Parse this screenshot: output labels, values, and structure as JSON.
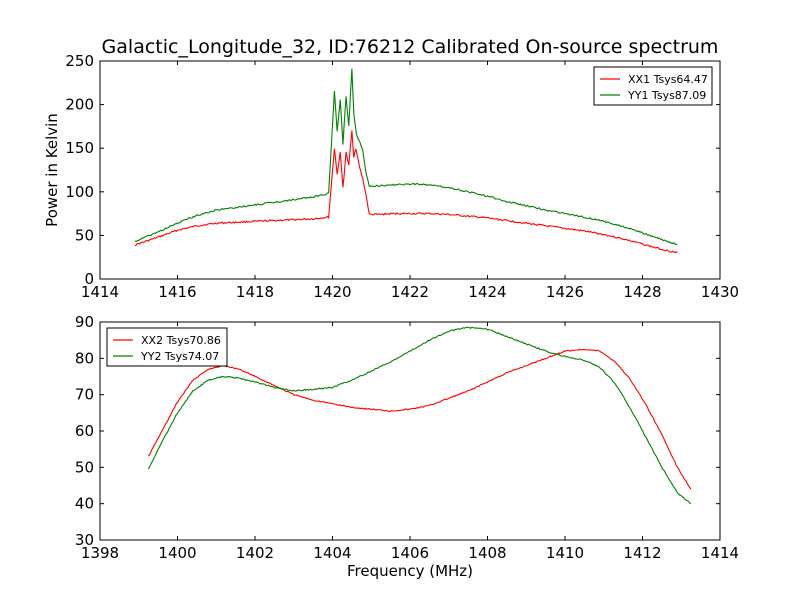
{
  "figure": {
    "title": "Galactic_Longitude_32, ID:76212 Calibrated On-source spectrum"
  },
  "chart_data": [
    {
      "type": "line",
      "title": "Galactic_Longitude_32, ID:76212 Calibrated On-source spectrum",
      "xlabel": "",
      "ylabel": "Power in Kelvin",
      "xlim": [
        1414,
        1430
      ],
      "ylim": [
        0,
        250
      ],
      "xticks": [
        "1414",
        "1416",
        "1418",
        "1420",
        "1422",
        "1424",
        "1426",
        "1428",
        "1430"
      ],
      "yticks": [
        "0",
        "50",
        "100",
        "150",
        "200",
        "250"
      ],
      "grid": false,
      "legend_position": "top-right",
      "series": [
        {
          "name": "XX1 Tsys64.47",
          "color": "#ff0000",
          "x": [
            1414.9,
            1415.5,
            1416.0,
            1416.5,
            1417.0,
            1417.5,
            1418.0,
            1418.5,
            1419.0,
            1419.5,
            1419.9,
            1420.05,
            1420.12,
            1420.2,
            1420.27,
            1420.35,
            1420.42,
            1420.5,
            1420.55,
            1420.6,
            1420.7,
            1420.78,
            1420.85,
            1420.95,
            1421.2,
            1421.6,
            1422.0,
            1422.5,
            1423.0,
            1423.5,
            1424.0,
            1424.5,
            1425.0,
            1425.5,
            1426.0,
            1426.5,
            1427.0,
            1427.5,
            1428.0,
            1428.5,
            1428.9
          ],
          "values": [
            39,
            48,
            56,
            61,
            64,
            65,
            66,
            67,
            68,
            69,
            71,
            150,
            120,
            145,
            105,
            145,
            130,
            170,
            140,
            150,
            128,
            115,
            100,
            74,
            74,
            75,
            75,
            75,
            74,
            72,
            70,
            67,
            64,
            61,
            58,
            55,
            51,
            46,
            40,
            34,
            30
          ]
        },
        {
          "name": "YY1 Tsys87.09",
          "color": "#008000",
          "x": [
            1414.9,
            1415.5,
            1416.0,
            1416.5,
            1417.0,
            1417.5,
            1418.0,
            1418.5,
            1419.0,
            1419.5,
            1419.9,
            1420.05,
            1420.12,
            1420.2,
            1420.27,
            1420.35,
            1420.42,
            1420.5,
            1420.55,
            1420.62,
            1420.7,
            1420.78,
            1420.85,
            1420.95,
            1421.2,
            1421.6,
            1422.0,
            1422.5,
            1423.0,
            1423.5,
            1424.0,
            1424.5,
            1425.0,
            1425.5,
            1426.0,
            1426.5,
            1427.0,
            1427.5,
            1428.0,
            1428.5,
            1428.9
          ],
          "values": [
            43,
            54,
            64,
            73,
            79,
            82,
            85,
            88,
            91,
            94,
            98,
            215,
            170,
            205,
            155,
            210,
            175,
            242,
            190,
            165,
            158,
            148,
            125,
            106,
            107,
            108,
            109,
            108,
            105,
            100,
            95,
            89,
            84,
            79,
            75,
            71,
            66,
            60,
            53,
            45,
            40
          ]
        }
      ]
    },
    {
      "type": "line",
      "title": "",
      "xlabel": "Frequency (MHz)",
      "ylabel": "",
      "xlim": [
        1398,
        1414
      ],
      "ylim": [
        30,
        90
      ],
      "xticks": [
        "1398",
        "1400",
        "1402",
        "1404",
        "1406",
        "1408",
        "1410",
        "1412",
        "1414"
      ],
      "yticks": [
        "30",
        "40",
        "50",
        "60",
        "70",
        "80",
        "90"
      ],
      "grid": false,
      "legend_position": "top-left",
      "series": [
        {
          "name": "XX2 Tsys70.86",
          "color": "#ff0000",
          "x": [
            1399.25,
            1399.6,
            1400.0,
            1400.4,
            1400.8,
            1401.2,
            1401.6,
            1402.0,
            1402.5,
            1403.0,
            1403.5,
            1404.0,
            1404.5,
            1405.0,
            1405.5,
            1406.0,
            1406.5,
            1407.0,
            1407.5,
            1408.0,
            1408.5,
            1409.0,
            1409.5,
            1410.0,
            1410.5,
            1410.9,
            1411.3,
            1411.7,
            1412.1,
            1412.5,
            1412.9,
            1413.25
          ],
          "values": [
            53,
            60,
            68,
            74,
            77,
            78,
            77,
            75,
            72.5,
            70,
            68.5,
            67.5,
            66.5,
            66,
            65.5,
            66,
            67,
            69,
            71,
            73.5,
            76,
            78,
            80,
            82,
            82.5,
            82,
            79,
            74,
            67,
            59,
            50,
            44
          ]
        },
        {
          "name": "YY2 Tsys74.07",
          "color": "#008000",
          "x": [
            1399.25,
            1399.6,
            1400.0,
            1400.4,
            1400.8,
            1401.2,
            1401.6,
            1402.0,
            1402.5,
            1403.0,
            1403.5,
            1404.0,
            1404.5,
            1405.0,
            1405.5,
            1406.0,
            1406.5,
            1407.0,
            1407.5,
            1408.0,
            1408.5,
            1409.0,
            1409.5,
            1410.0,
            1410.5,
            1410.9,
            1411.3,
            1411.7,
            1412.1,
            1412.5,
            1412.9,
            1413.25
          ],
          "values": [
            49.5,
            57,
            65,
            71,
            74,
            75,
            74.5,
            73.5,
            72,
            71,
            71.5,
            72,
            74,
            76.5,
            79,
            82,
            85,
            87.5,
            88.5,
            88,
            86,
            84,
            82,
            80.5,
            79.5,
            77.5,
            73,
            66,
            58,
            50,
            43,
            40
          ]
        }
      ]
    }
  ]
}
